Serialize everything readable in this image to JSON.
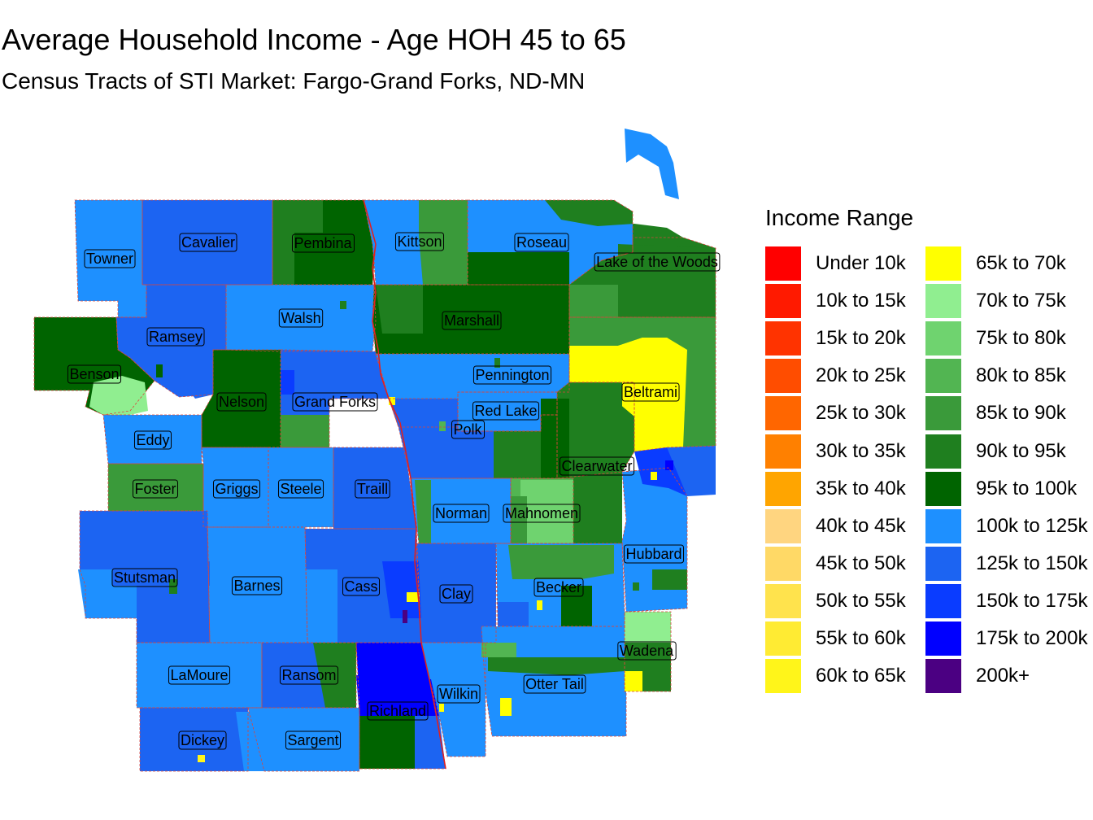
{
  "title": "Average Household Income - Age HOH 45 to 65",
  "subtitle": "Census Tracts of STI Market: Fargo-Grand Forks, ND-MN",
  "legend": {
    "title": "Income Range",
    "items": [
      {
        "label": "Under 10k",
        "color": "#FF0000"
      },
      {
        "label": "10k to 15k",
        "color": "#FF1A00"
      },
      {
        "label": "15k to 20k",
        "color": "#FF3300"
      },
      {
        "label": "20k to 25k",
        "color": "#FF4D00"
      },
      {
        "label": "25k to 30k",
        "color": "#FF6600"
      },
      {
        "label": "30k to 35k",
        "color": "#FF8000"
      },
      {
        "label": "35k to 40k",
        "color": "#FFA500"
      },
      {
        "label": "40k to 45k",
        "color": "#FFD580"
      },
      {
        "label": "45k to 50k",
        "color": "#FFD966"
      },
      {
        "label": "50k to 55k",
        "color": "#FFE34D"
      },
      {
        "label": "55k to 60k",
        "color": "#FFEB33"
      },
      {
        "label": "60k to 65k",
        "color": "#FFF51A"
      },
      {
        "label": "65k to 70k",
        "color": "#FFFF00"
      },
      {
        "label": "70k to 75k",
        "color": "#90EE90"
      },
      {
        "label": "75k to 80k",
        "color": "#6FD36F"
      },
      {
        "label": "80k to 85k",
        "color": "#52B552"
      },
      {
        "label": "85k to 90k",
        "color": "#3A9A3A"
      },
      {
        "label": "90k to 95k",
        "color": "#1F7F1F"
      },
      {
        "label": "95k to 100k",
        "color": "#006400"
      },
      {
        "label": "100k to 125k",
        "color": "#1E90FF"
      },
      {
        "label": "125k to 150k",
        "color": "#1C64F2"
      },
      {
        "label": "150k to 175k",
        "color": "#0A3CFF"
      },
      {
        "label": "175k to 200k",
        "color": "#0000FF"
      },
      {
        "label": "200k+",
        "color": "#4B0082"
      }
    ]
  },
  "counties": [
    {
      "name": "Towner",
      "income": "100k to 125k"
    },
    {
      "name": "Cavalier",
      "income": "125k to 150k"
    },
    {
      "name": "Pembina",
      "income": "95k to 100k"
    },
    {
      "name": "Kittson",
      "income": "100k to 125k"
    },
    {
      "name": "Roseau",
      "income": "100k to 125k"
    },
    {
      "name": "Lake of the Woods",
      "income": "90k to 95k"
    },
    {
      "name": "Ramsey",
      "income": "125k to 150k"
    },
    {
      "name": "Walsh",
      "income": "100k to 125k"
    },
    {
      "name": "Marshall",
      "income": "95k to 100k"
    },
    {
      "name": "Benson",
      "income": "95k to 100k"
    },
    {
      "name": "Nelson",
      "income": "95k to 100k"
    },
    {
      "name": "Grand Forks",
      "income": "125k to 150k"
    },
    {
      "name": "Pennington",
      "income": "100k to 125k"
    },
    {
      "name": "Beltrami",
      "income": "65k to 70k"
    },
    {
      "name": "Red Lake",
      "income": "100k to 125k"
    },
    {
      "name": "Polk",
      "income": "125k to 150k"
    },
    {
      "name": "Eddy",
      "income": "100k to 125k"
    },
    {
      "name": "Clearwater",
      "income": "90k to 95k"
    },
    {
      "name": "Foster",
      "income": "85k to 90k"
    },
    {
      "name": "Griggs",
      "income": "100k to 125k"
    },
    {
      "name": "Steele",
      "income": "100k to 125k"
    },
    {
      "name": "Traill",
      "income": "125k to 150k"
    },
    {
      "name": "Norman",
      "income": "100k to 125k"
    },
    {
      "name": "Mahnomen",
      "income": "80k to 85k"
    },
    {
      "name": "Hubbard",
      "income": "100k to 125k"
    },
    {
      "name": "Stutsman",
      "income": "125k to 150k"
    },
    {
      "name": "Barnes",
      "income": "100k to 125k"
    },
    {
      "name": "Cass",
      "income": "125k to 150k"
    },
    {
      "name": "Clay",
      "income": "125k to 150k"
    },
    {
      "name": "Becker",
      "income": "100k to 125k"
    },
    {
      "name": "Wadena",
      "income": "90k to 95k"
    },
    {
      "name": "LaMoure",
      "income": "100k to 125k"
    },
    {
      "name": "Ransom",
      "income": "125k to 150k"
    },
    {
      "name": "Otter Tail",
      "income": "100k to 125k"
    },
    {
      "name": "Richland",
      "income": "175k to 200k"
    },
    {
      "name": "Wilkin",
      "income": "100k to 125k"
    },
    {
      "name": "Dickey",
      "income": "125k to 150k"
    },
    {
      "name": "Sargent",
      "income": "100k to 125k"
    }
  ]
}
